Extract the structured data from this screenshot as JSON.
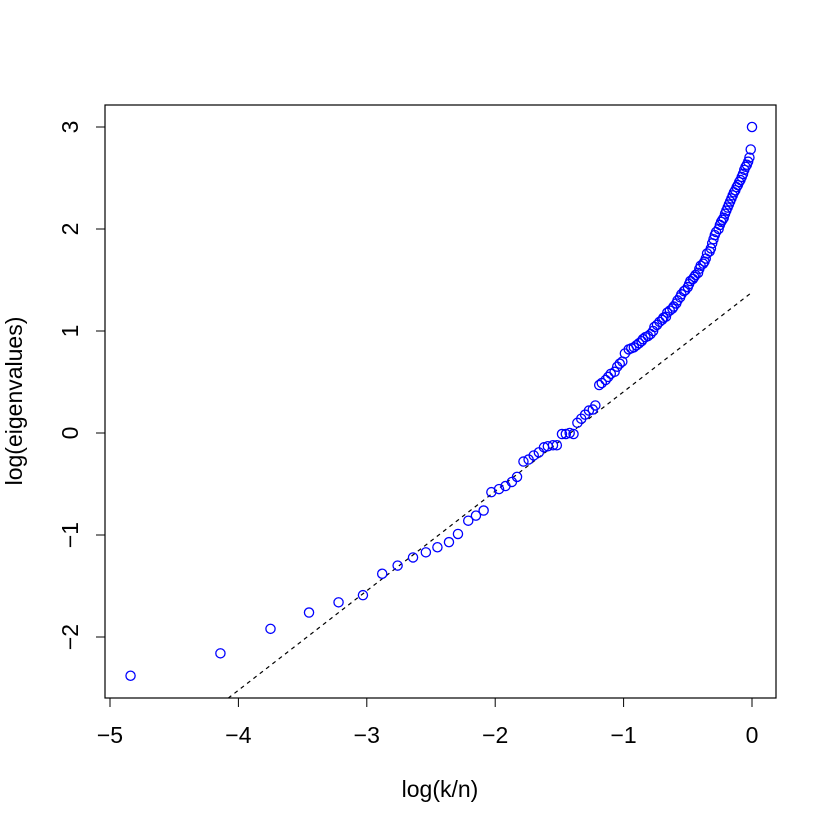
{
  "chart_data": {
    "type": "scatter",
    "title": "",
    "xlabel": "log(k/n)",
    "ylabel": "log(eigenvalues)",
    "xlim": [
      -5,
      0
    ],
    "ylim": [
      -2.5,
      3
    ],
    "x_ticks": [
      -5,
      -4,
      -3,
      -2,
      -1,
      0
    ],
    "y_ticks": [
      -2,
      -1,
      0,
      1,
      2,
      3
    ],
    "x_tick_labels": [
      "−5",
      "−4",
      "−3",
      "−2",
      "−1",
      "0"
    ],
    "y_tick_labels": [
      "−2",
      "−1",
      "0",
      "1",
      "2",
      "3"
    ],
    "grid": false,
    "colors": {
      "points": "#0000FF",
      "reference_line": "#000000"
    },
    "marker": "open-circle",
    "reference_line": {
      "style": "dashed",
      "x": [
        -4.08,
        0.0
      ],
      "y": [
        -2.6,
        1.38
      ]
    },
    "series": [
      {
        "x": [
          -4.84,
          -4.14,
          -3.75,
          -3.45,
          -3.22,
          -3.03,
          -2.88,
          -2.76,
          -2.64,
          -2.54,
          -2.45,
          -2.36,
          -2.29,
          -2.21,
          -2.15,
          -2.09,
          -2.03,
          -1.97,
          -1.92,
          -1.87,
          -1.83,
          -1.78,
          -1.74,
          -1.7,
          -1.66,
          -1.62,
          -1.59,
          -1.55,
          -1.52,
          -1.48,
          -1.45,
          -1.42,
          -1.39,
          -1.36,
          -1.33,
          -1.3,
          -1.27,
          -1.24,
          -1.22,
          -1.19,
          -1.17,
          -1.14,
          -1.12,
          -1.1,
          -1.07,
          -1.05,
          -1.03,
          -1.01,
          -0.99,
          -0.96,
          -0.94,
          -0.92,
          -0.9,
          -0.88,
          -0.86,
          -0.85,
          -0.83,
          -0.81,
          -0.79,
          -0.77,
          -0.76,
          -0.74,
          -0.72,
          -0.7,
          -0.69,
          -0.67,
          -0.66,
          -0.64,
          -0.62,
          -0.61,
          -0.59,
          -0.58,
          -0.56,
          -0.55,
          -0.53,
          -0.52,
          -0.5,
          -0.49,
          -0.48,
          -0.46,
          -0.45,
          -0.44,
          -0.42,
          -0.41,
          -0.4,
          -0.38,
          -0.37,
          -0.36,
          -0.35,
          -0.33,
          -0.32,
          -0.31,
          -0.3,
          -0.29,
          -0.28,
          -0.26,
          -0.25,
          -0.24,
          -0.23,
          -0.22,
          -0.21,
          -0.2,
          -0.19,
          -0.18,
          -0.17,
          -0.16,
          -0.15,
          -0.14,
          -0.13,
          -0.12,
          -0.11,
          -0.1,
          -0.09,
          -0.08,
          -0.07,
          -0.06,
          -0.05,
          -0.04,
          -0.03,
          -0.02,
          -0.01,
          0.0
        ],
        "y": [
          -2.38,
          -2.16,
          -1.92,
          -1.76,
          -1.66,
          -1.59,
          -1.38,
          -1.3,
          -1.22,
          -1.17,
          -1.12,
          -1.07,
          -0.99,
          -0.86,
          -0.81,
          -0.76,
          -0.58,
          -0.55,
          -0.52,
          -0.48,
          -0.43,
          -0.28,
          -0.26,
          -0.22,
          -0.19,
          -0.14,
          -0.13,
          -0.12,
          -0.12,
          -0.01,
          -0.01,
          0.0,
          -0.01,
          0.1,
          0.14,
          0.18,
          0.22,
          0.23,
          0.27,
          0.47,
          0.49,
          0.52,
          0.55,
          0.58,
          0.6,
          0.65,
          0.68,
          0.7,
          0.78,
          0.82,
          0.83,
          0.84,
          0.86,
          0.88,
          0.9,
          0.92,
          0.94,
          0.95,
          0.97,
          1.0,
          1.04,
          1.06,
          1.09,
          1.11,
          1.13,
          1.14,
          1.18,
          1.2,
          1.22,
          1.24,
          1.27,
          1.3,
          1.33,
          1.36,
          1.39,
          1.4,
          1.43,
          1.46,
          1.49,
          1.51,
          1.53,
          1.55,
          1.57,
          1.61,
          1.64,
          1.66,
          1.68,
          1.71,
          1.76,
          1.78,
          1.81,
          1.86,
          1.9,
          1.94,
          1.97,
          2.0,
          2.04,
          2.07,
          2.09,
          2.11,
          2.15,
          2.18,
          2.21,
          2.24,
          2.27,
          2.3,
          2.33,
          2.36,
          2.38,
          2.41,
          2.43,
          2.46,
          2.48,
          2.51,
          2.54,
          2.58,
          2.61,
          2.63,
          2.66,
          2.7,
          2.78,
          3.0
        ]
      }
    ]
  }
}
